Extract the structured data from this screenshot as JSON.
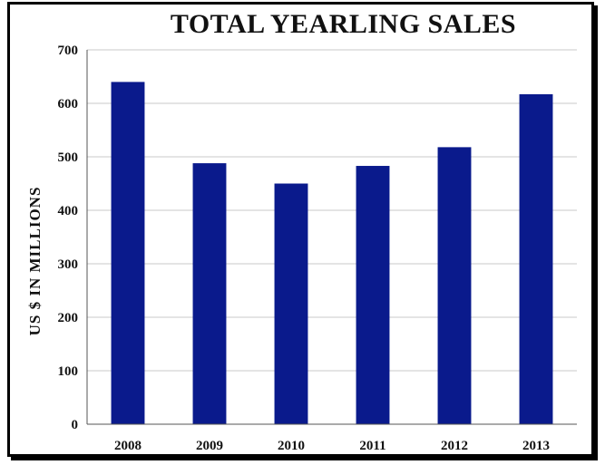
{
  "chart_data": {
    "type": "bar",
    "title": "TOTAL YEARLING SALES",
    "xlabel": "",
    "ylabel": "US $ IN MILLIONS",
    "categories": [
      "2008",
      "2009",
      "2010",
      "2011",
      "2012",
      "2013"
    ],
    "values": [
      640,
      488,
      450,
      483,
      518,
      617
    ],
    "ylim": [
      0,
      700
    ],
    "yticks": [
      "0",
      "100",
      "200",
      "300",
      "400",
      "500",
      "600",
      "700"
    ],
    "grid": true,
    "legend": "none",
    "bar_color": "#0a1a8c",
    "grid_color": "#c8c8c8"
  }
}
